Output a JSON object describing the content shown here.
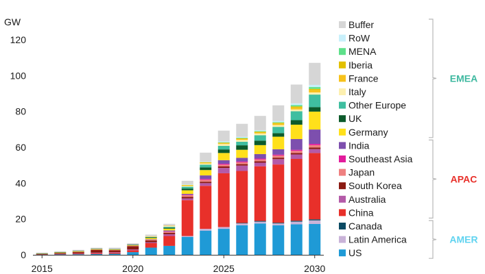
{
  "chart_data": {
    "type": "bar",
    "stacked": true,
    "unit_label": "GW",
    "categories": [
      "2015",
      "2016",
      "2017",
      "2018",
      "2019",
      "2020",
      "2021",
      "2022",
      "2023",
      "2024",
      "2025",
      "2026",
      "2027",
      "2028",
      "2029",
      "2030"
    ],
    "x_tick_labels": [
      "2015",
      "2020",
      "2025",
      "2030"
    ],
    "y_ticks": [
      "0",
      "20",
      "40",
      "60",
      "80",
      "100",
      "120"
    ],
    "ylim": [
      0,
      120
    ],
    "grid": false,
    "legend_position": "right",
    "series": [
      {
        "name": "US",
        "color": "#1f9ad6",
        "values": [
          0.2,
          0.2,
          0.3,
          0.4,
          0.6,
          1.5,
          4,
          5,
          10,
          13.5,
          14.5,
          16.5,
          17.5,
          16.5,
          17,
          17.2
        ]
      },
      {
        "name": "Latin America",
        "color": "#c9b3d8",
        "values": [
          0,
          0,
          0,
          0,
          0,
          0,
          0,
          0,
          0.5,
          1,
          1,
          1,
          1,
          1,
          1.5,
          2
        ]
      },
      {
        "name": "Canada",
        "color": "#0a4a63",
        "values": [
          0,
          0,
          0,
          0,
          0,
          0,
          0,
          0,
          0,
          0,
          0,
          0.3,
          0.4,
          0.4,
          0.5,
          0.6
        ]
      },
      {
        "name": "China",
        "color": "#e8302a",
        "values": [
          0.1,
          0.2,
          0.3,
          0.5,
          0.6,
          1,
          2.5,
          5.5,
          20,
          24,
          30,
          29,
          30.5,
          32.5,
          34.5,
          37
        ]
      },
      {
        "name": "Australia",
        "color": "#b45aa8",
        "values": [
          0,
          0.1,
          0.2,
          0.3,
          0.3,
          0.5,
          0.5,
          1,
          1,
          1.5,
          3,
          3,
          2,
          3,
          2.5,
          2.2
        ]
      },
      {
        "name": "South Korea",
        "color": "#8a1a12",
        "values": [
          0.2,
          0.5,
          0.8,
          1.5,
          1,
          1.8,
          1,
          0.8,
          0.8,
          0.8,
          0.8,
          0.8,
          0.8,
          0.8,
          0.8,
          0.9
        ]
      },
      {
        "name": "Japan",
        "color": "#ef8080",
        "values": [
          0,
          0,
          0.1,
          0.2,
          0.2,
          0.3,
          0.5,
          0.6,
          1,
          1,
          1,
          1,
          1,
          1.2,
          1.2,
          1.3
        ]
      },
      {
        "name": "Southeast Asia",
        "color": "#e21c9c",
        "values": [
          0,
          0,
          0,
          0,
          0,
          0,
          0,
          0.2,
          0.2,
          0.5,
          0.5,
          0.5,
          0.5,
          0.5,
          0.6,
          0.7
        ]
      },
      {
        "name": "India",
        "color": "#7d4fae",
        "values": [
          0,
          0,
          0,
          0,
          0,
          0,
          0.2,
          0.5,
          0.5,
          2,
          2,
          2,
          2.5,
          3,
          6,
          8
        ]
      },
      {
        "name": "Germany",
        "color": "#ffe01b",
        "values": [
          0.2,
          0.3,
          0.3,
          0.3,
          0.3,
          0.3,
          0.7,
          1,
          2,
          3,
          4,
          4.5,
          5,
          7,
          8,
          10
        ]
      },
      {
        "name": "UK",
        "color": "#0c5a2b",
        "values": [
          0.1,
          0.2,
          0.2,
          0.2,
          0.2,
          0.3,
          0.4,
          0.5,
          1,
          1.5,
          2,
          2.5,
          2.5,
          2,
          2.5,
          2.5
        ]
      },
      {
        "name": "Other Europe",
        "color": "#3fbea0",
        "values": [
          0,
          0,
          0,
          0,
          0,
          0,
          0.2,
          0.5,
          1,
          1.5,
          2,
          2,
          3,
          3.5,
          5,
          7
        ]
      },
      {
        "name": "Italy",
        "color": "#fdf0b0",
        "values": [
          0,
          0,
          0,
          0,
          0,
          0,
          0.3,
          0.5,
          0.5,
          0.7,
          1,
          1,
          1,
          1,
          1,
          1.2
        ]
      },
      {
        "name": "France",
        "color": "#f7c21b",
        "values": [
          0,
          0,
          0,
          0,
          0,
          0,
          0.1,
          0.2,
          0.3,
          0.4,
          0.4,
          0.5,
          0.5,
          0.7,
          1,
          1.2
        ]
      },
      {
        "name": "Iberia",
        "color": "#e2c000",
        "values": [
          0,
          0,
          0,
          0,
          0,
          0,
          0,
          0,
          0.2,
          0.3,
          0.4,
          0.4,
          0.5,
          0.6,
          0.7,
          0.8
        ]
      },
      {
        "name": "MENA",
        "color": "#5ee08a",
        "values": [
          0,
          0,
          0,
          0,
          0,
          0,
          0,
          0,
          0,
          0,
          0.2,
          0.3,
          0.3,
          0.3,
          0.7,
          1
        ]
      },
      {
        "name": "RoW",
        "color": "#c8f0fb",
        "values": [
          0,
          0,
          0,
          0,
          0,
          0,
          0,
          0,
          0.3,
          0.3,
          0.5,
          0.5,
          0.5,
          0.7,
          1,
          1.2
        ]
      },
      {
        "name": "Buffer",
        "color": "#d6d6d6",
        "values": [
          0.5,
          0.5,
          0.6,
          0.6,
          0.8,
          0.8,
          0.9,
          1,
          2,
          5,
          6,
          7.3,
          8,
          8.7,
          10.5,
          12.3
        ]
      }
    ],
    "legend_order": [
      "Buffer",
      "RoW",
      "MENA",
      "Iberia",
      "France",
      "Italy",
      "Other Europe",
      "UK",
      "Germany",
      "India",
      "Southeast Asia",
      "Japan",
      "South Korea",
      "Australia",
      "China",
      "Canada",
      "Latin America",
      "US"
    ],
    "groups": [
      {
        "name": "EMEA",
        "color": "#3fb9a0",
        "members": [
          "Buffer",
          "RoW",
          "MENA",
          "Iberia",
          "France",
          "Italy",
          "Other Europe",
          "UK",
          "Germany"
        ]
      },
      {
        "name": "APAC",
        "color": "#e8302a",
        "members": [
          "India",
          "Southeast Asia",
          "Japan",
          "South Korea",
          "Australia",
          "China"
        ]
      },
      {
        "name": "AMER",
        "color": "#5fd3f0",
        "members": [
          "Canada",
          "Latin America",
          "US"
        ]
      }
    ]
  }
}
